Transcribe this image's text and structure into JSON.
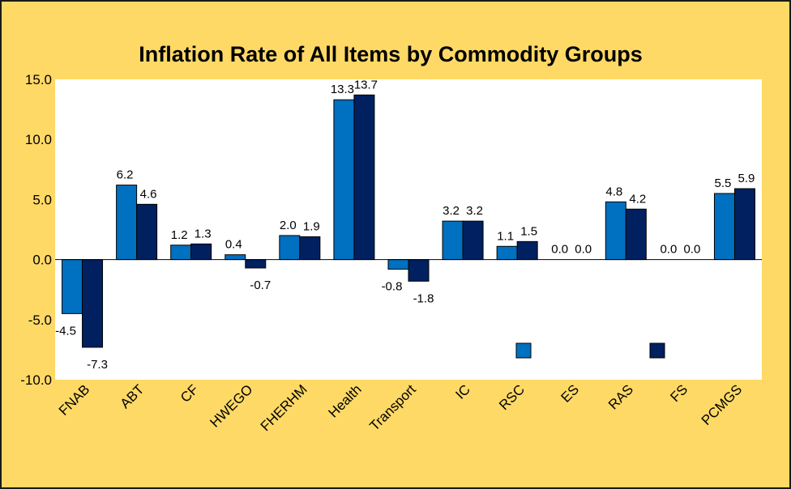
{
  "chart_data": {
    "type": "bar",
    "title": "Inflation Rate of All  Items by Commodity Groups",
    "xlabel": "",
    "ylabel": "",
    "ylim": [
      -10,
      15
    ],
    "yticks": [
      15,
      10,
      5,
      0,
      -5,
      -10
    ],
    "ytick_labels": [
      "15.0",
      "10.0",
      "5.0",
      "0.0",
      "-5.0",
      "-10.0"
    ],
    "categories": [
      "FNAB",
      "ABT",
      "CF",
      "HWEGO",
      "FHERHM",
      "Health",
      "Transport",
      "IC",
      "RSC",
      "ES",
      "RAS",
      "FS",
      "PCMGS"
    ],
    "series": [
      {
        "values": [
          -4.5,
          6.2,
          1.2,
          0.4,
          2.0,
          13.3,
          -0.8,
          3.2,
          1.1,
          0.0,
          4.8,
          0.0,
          5.5
        ],
        "labels": [
          "-4.5",
          "6.2",
          "1.2",
          "0.4",
          "2.0",
          "13.3",
          "-0.8",
          "3.2",
          "1.1",
          "0.0",
          "4.8",
          "0.0",
          "5.5"
        ],
        "color": "#0070c0"
      },
      {
        "values": [
          -7.3,
          4.6,
          1.3,
          -0.7,
          1.9,
          13.7,
          -1.8,
          3.2,
          1.5,
          0.0,
          4.2,
          0.0,
          5.9
        ],
        "labels": [
          "-7.3",
          "4.6",
          "1.3",
          "-0.7",
          "1.9",
          "13.7",
          "-1.8",
          "3.2",
          "1.5",
          "0.0",
          "4.2",
          "0.0",
          "5.9"
        ],
        "color": "#002060"
      }
    ],
    "legend": {
      "placement": "bottom-inside",
      "show_names": false
    },
    "grid": false,
    "colors": {
      "background": "#ffd966",
      "plot_area": "#ffffff",
      "outline": "#000000"
    }
  }
}
